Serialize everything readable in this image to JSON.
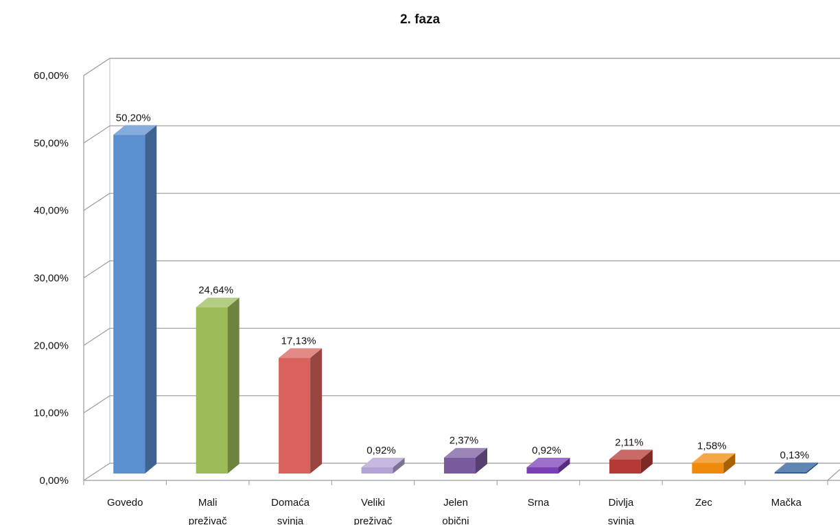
{
  "chart_data": {
    "type": "bar",
    "title": "2. faza",
    "categories": [
      [
        "Govedo"
      ],
      [
        "Mali",
        "preživač"
      ],
      [
        "Domaća",
        "svinja"
      ],
      [
        "Veliki",
        "preživač"
      ],
      [
        "Jelen",
        "obični"
      ],
      [
        "Srna"
      ],
      [
        "Divlja",
        "svinja"
      ],
      [
        "Zec"
      ],
      [
        "Mačka"
      ]
    ],
    "values": [
      50.2,
      24.64,
      17.13,
      0.92,
      2.37,
      0.92,
      2.11,
      1.58,
      0.13
    ],
    "data_labels": [
      "50,20%",
      "24,64%",
      "17,13%",
      "0,92%",
      "2,37%",
      "0,92%",
      "2,11%",
      "1,58%",
      "0,13%"
    ],
    "ylim": [
      0,
      60
    ],
    "yticks": [
      0,
      10,
      20,
      30,
      40,
      50,
      60
    ],
    "ytick_labels": [
      "0,00%",
      "10,00%",
      "20,00%",
      "30,00%",
      "40,00%",
      "50,00%",
      "60,00%"
    ],
    "grid": true,
    "legend": "none",
    "colors": [
      "#5b8fd0",
      "#9bbb59",
      "#d9625d",
      "#b3a2d6",
      "#7a5c9e",
      "#7b3fb5",
      "#b53a36",
      "#f08a0a",
      "#2d5d9a"
    ],
    "xlabel": "",
    "ylabel": ""
  }
}
